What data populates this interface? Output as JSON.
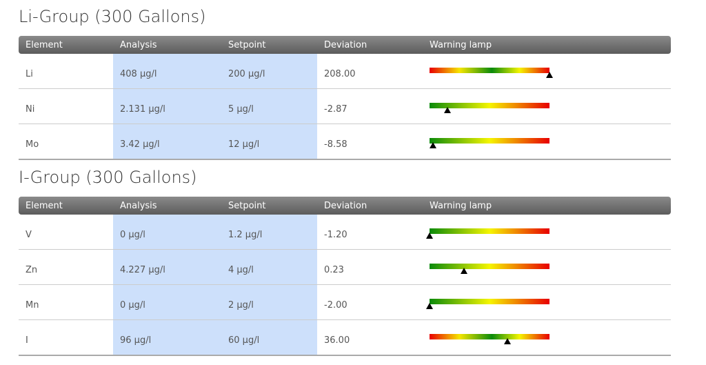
{
  "groups": [
    {
      "title": "Li-Group (300 Gallons)",
      "headers": [
        "Element",
        "Analysis",
        "Setpoint",
        "Deviation",
        "Warning lamp"
      ],
      "rows": [
        {
          "cells": [
            "Li",
            "408 µg/l",
            "200 µg/l",
            "208.00"
          ],
          "lamp": {
            "scale": "two-sided",
            "marker": 1.0
          }
        },
        {
          "cells": [
            "Ni",
            "2.131 µg/l",
            "5 µg/l",
            "-2.87"
          ],
          "lamp": {
            "scale": "one-sided",
            "marker": 0.15
          }
        },
        {
          "cells": [
            "Mo",
            "3.42 µg/l",
            "12 µg/l",
            "-8.58"
          ],
          "lamp": {
            "scale": "one-sided",
            "marker": 0.03
          }
        }
      ]
    },
    {
      "title": "I-Group (300 Gallons)",
      "headers": [
        "Element",
        "Analysis",
        "Setpoint",
        "Deviation",
        "Warning lamp"
      ],
      "rows": [
        {
          "cells": [
            "V",
            "0 µg/l",
            "1.2 µg/l",
            "-1.20"
          ],
          "lamp": {
            "scale": "one-sided",
            "marker": 0.0
          }
        },
        {
          "cells": [
            "Zn",
            "4.227 µg/l",
            "4 µg/l",
            "0.23"
          ],
          "lamp": {
            "scale": "one-sided",
            "marker": 0.29
          }
        },
        {
          "cells": [
            "Mn",
            "0 µg/l",
            "2 µg/l",
            "-2.00"
          ],
          "lamp": {
            "scale": "one-sided",
            "marker": 0.0
          }
        },
        {
          "cells": [
            "I",
            "96 µg/l",
            "60 µg/l",
            "36.00"
          ],
          "lamp": {
            "scale": "two-sided",
            "marker": 0.65
          }
        }
      ]
    }
  ]
}
